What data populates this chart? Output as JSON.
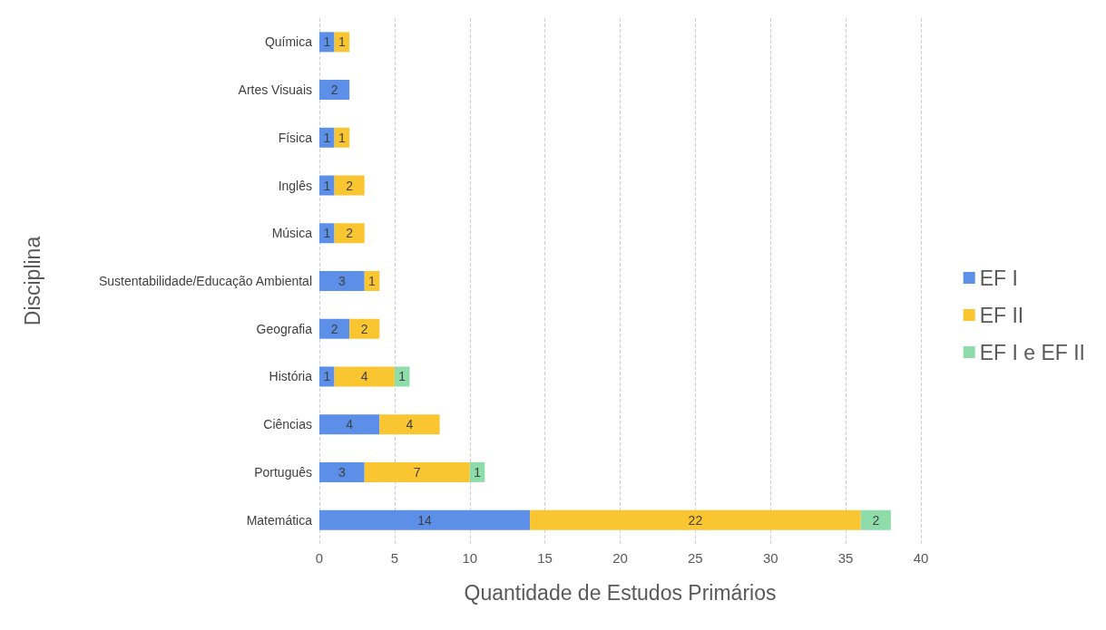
{
  "chart_data": {
    "type": "bar",
    "orientation": "horizontal",
    "stacked": true,
    "xlabel": "Quantidade de Estudos Primários",
    "ylabel": "Disciplina",
    "categories": [
      "Química",
      "Artes Visuais",
      "Física",
      "Inglês",
      "Música",
      "Sustentabilidade/Educação Ambiental",
      "Geografia",
      "História",
      "Ciências",
      "Português",
      "Matemática"
    ],
    "series": [
      {
        "name": "EF I",
        "color": "#5b8fe8",
        "values": [
          1,
          2,
          1,
          1,
          1,
          3,
          2,
          1,
          4,
          3,
          14
        ]
      },
      {
        "name": "EF II",
        "color": "#f9c632",
        "values": [
          1,
          null,
          1,
          2,
          2,
          1,
          2,
          4,
          4,
          7,
          22
        ]
      },
      {
        "name": "EF I e EF II",
        "color": "#8fdcab",
        "values": [
          null,
          null,
          null,
          null,
          null,
          null,
          null,
          1,
          null,
          1,
          2
        ]
      }
    ],
    "xlim": [
      0,
      40
    ],
    "xticks": [
      0,
      5,
      10,
      15,
      20,
      25,
      30,
      35,
      40
    ],
    "grid": "x",
    "legend": "right",
    "data_labels": true
  }
}
